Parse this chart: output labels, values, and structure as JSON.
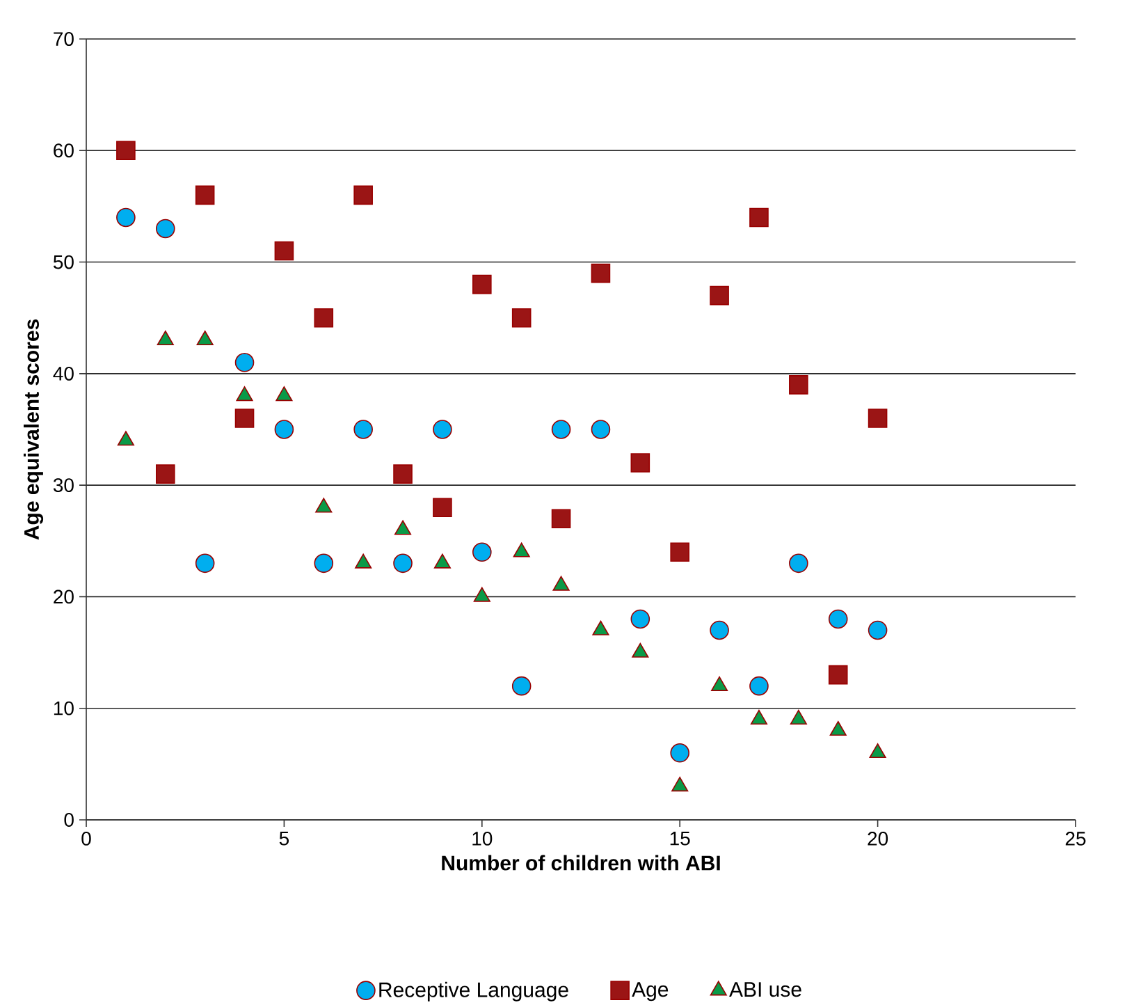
{
  "chart_data": {
    "type": "scatter",
    "xlabel": "Number of children with ABI",
    "ylabel": "Age equivalent scores",
    "x": [
      1,
      2,
      3,
      4,
      5,
      6,
      7,
      8,
      9,
      10,
      11,
      12,
      13,
      14,
      15,
      16,
      17,
      18,
      19,
      20
    ],
    "series": [
      {
        "name": "Receptive Language",
        "color": "#00aeef",
        "marker": "circle",
        "values": [
          54,
          53,
          23,
          41,
          35,
          23,
          35,
          23,
          35,
          24,
          12,
          35,
          35,
          18,
          6,
          17,
          12,
          23,
          18,
          17
        ]
      },
      {
        "name": "Age",
        "color": "#9b1515",
        "marker": "square",
        "values": [
          60,
          31,
          56,
          36,
          51,
          45,
          56,
          31,
          28,
          48,
          45,
          27,
          49,
          32,
          24,
          47,
          54,
          39,
          13,
          36
        ]
      },
      {
        "name": "ABI use",
        "color": "#0a9a48",
        "marker": "triangle",
        "values": [
          34,
          43,
          43,
          38,
          38,
          28,
          23,
          26,
          23,
          20,
          24,
          21,
          17,
          15,
          3,
          12,
          9,
          9,
          8,
          6
        ]
      }
    ],
    "xlim": [
      0,
      25
    ],
    "xticks": [
      0,
      5,
      10,
      15,
      20,
      25
    ],
    "ylim": [
      0,
      70
    ],
    "yticks": [
      0,
      10,
      20,
      30,
      40,
      50,
      60,
      70
    ],
    "grid": "y",
    "legend": "bottom"
  }
}
